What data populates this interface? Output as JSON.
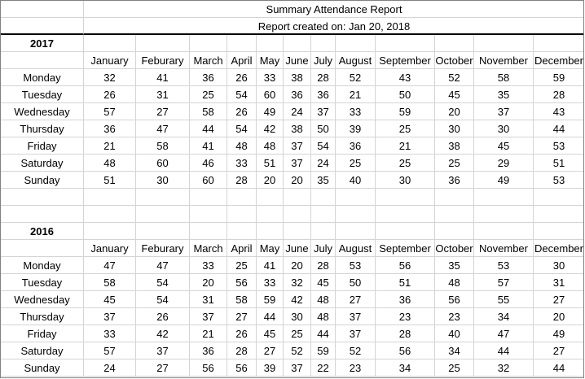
{
  "report": {
    "title": "Summary Attendance Report",
    "created": "Report created on: Jan 20, 2018"
  },
  "months": [
    "January",
    "Feburary",
    "March",
    "April",
    "May",
    "June",
    "July",
    "August",
    "September",
    "October",
    "November",
    "December"
  ],
  "sections": [
    {
      "year": "2017",
      "rows": [
        {
          "day": "Monday",
          "values": [
            32,
            41,
            36,
            26,
            33,
            38,
            28,
            52,
            43,
            52,
            58,
            59
          ]
        },
        {
          "day": "Tuesday",
          "values": [
            26,
            31,
            25,
            54,
            60,
            36,
            36,
            21,
            50,
            45,
            35,
            28
          ]
        },
        {
          "day": "Wednesday",
          "values": [
            57,
            27,
            58,
            26,
            49,
            24,
            37,
            33,
            59,
            20,
            37,
            43
          ]
        },
        {
          "day": "Thursday",
          "values": [
            36,
            47,
            44,
            54,
            42,
            38,
            50,
            39,
            25,
            30,
            30,
            44
          ]
        },
        {
          "day": "Friday",
          "values": [
            21,
            58,
            41,
            48,
            48,
            37,
            54,
            36,
            21,
            38,
            45,
            53
          ]
        },
        {
          "day": "Saturday",
          "values": [
            48,
            60,
            46,
            33,
            51,
            37,
            24,
            25,
            25,
            25,
            29,
            51
          ]
        },
        {
          "day": "Sunday",
          "values": [
            51,
            30,
            60,
            28,
            20,
            20,
            35,
            40,
            30,
            36,
            49,
            53
          ]
        }
      ]
    },
    {
      "year": "2016",
      "rows": [
        {
          "day": "Monday",
          "values": [
            47,
            47,
            33,
            25,
            41,
            20,
            28,
            53,
            56,
            35,
            53,
            30
          ]
        },
        {
          "day": "Tuesday",
          "values": [
            58,
            54,
            20,
            56,
            33,
            32,
            45,
            50,
            51,
            48,
            57,
            31
          ]
        },
        {
          "day": "Wednesday",
          "values": [
            45,
            54,
            31,
            58,
            59,
            42,
            48,
            27,
            36,
            56,
            55,
            27
          ]
        },
        {
          "day": "Thursday",
          "values": [
            37,
            26,
            37,
            27,
            44,
            30,
            48,
            37,
            23,
            23,
            34,
            20
          ]
        },
        {
          "day": "Friday",
          "values": [
            33,
            42,
            21,
            26,
            45,
            25,
            44,
            37,
            28,
            40,
            47,
            49
          ]
        },
        {
          "day": "Saturday",
          "values": [
            57,
            37,
            36,
            28,
            27,
            52,
            59,
            52,
            56,
            34,
            44,
            27
          ]
        },
        {
          "day": "Sunday",
          "values": [
            24,
            27,
            56,
            56,
            39,
            37,
            22,
            23,
            34,
            25,
            32,
            44
          ]
        }
      ]
    }
  ]
}
